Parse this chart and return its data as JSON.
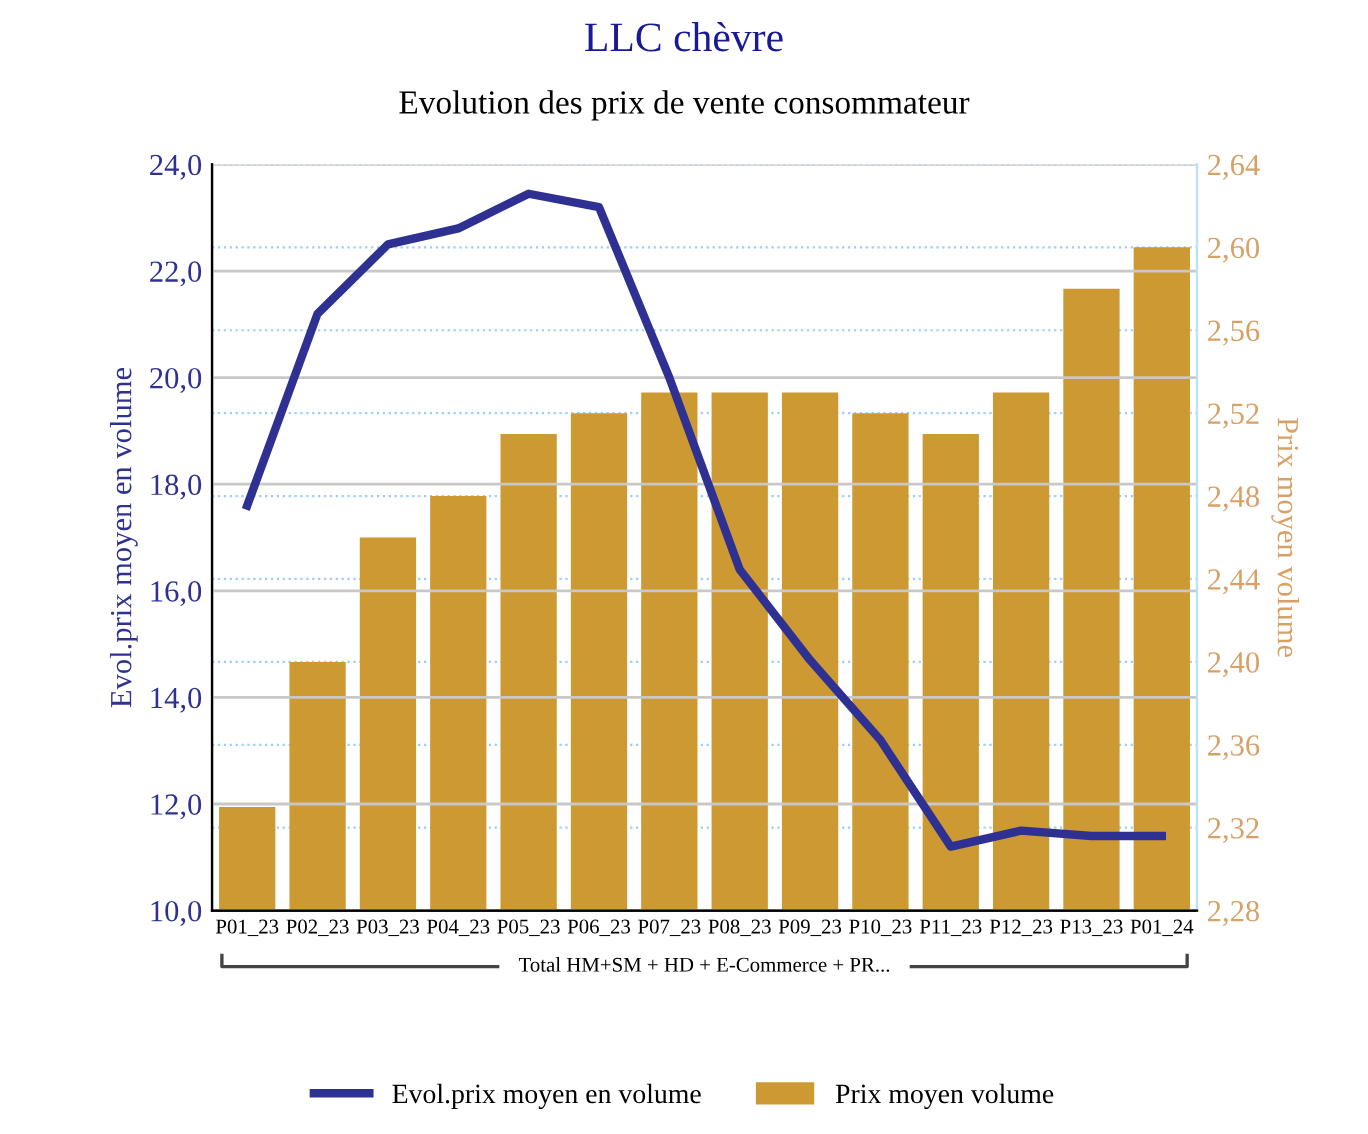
{
  "chart_data": {
    "type": "bar",
    "title": "LLC chèvre",
    "subtitle": "Evolution des prix de vente consommateur",
    "ylabel": "Evol.prix moyen en volume",
    "y2label": "Prix moyen volume",
    "categories": [
      "P01_23",
      "P02_23",
      "P03_23",
      "P04_23",
      "P05_23",
      "P06_23",
      "P07_23",
      "P08_23",
      "P09_23",
      "P10_23",
      "P11_23",
      "P12_23",
      "P13_23",
      "P01_24"
    ],
    "series": [
      {
        "name": "Evol.prix moyen en volume",
        "type": "line",
        "color": "#2e3192",
        "values": [
          17.6,
          21.2,
          22.5,
          22.8,
          23.45,
          23.2,
          20.0,
          16.4,
          14.7,
          13.2,
          11.2,
          11.5,
          11.4,
          11.4
        ]
      },
      {
        "name": "Prix moyen volume",
        "axis": "y2",
        "color": "#cc9933",
        "values": [
          2.33,
          2.4,
          2.46,
          2.48,
          2.51,
          2.52,
          2.53,
          2.53,
          2.53,
          2.52,
          2.51,
          2.53,
          2.58,
          2.6
        ]
      }
    ],
    "ylim": [
      10,
      24
    ],
    "yticks": [
      {
        "value": 10,
        "label": "10,0"
      },
      {
        "value": 12,
        "label": "12,0"
      },
      {
        "value": 14,
        "label": "14,0"
      },
      {
        "value": 16,
        "label": "16,0"
      },
      {
        "value": 18,
        "label": "18,0"
      },
      {
        "value": 20,
        "label": "20,0"
      },
      {
        "value": 22,
        "label": "22,0"
      },
      {
        "value": 24,
        "label": "24,0"
      }
    ],
    "y2lim": [
      2.28,
      2.64
    ],
    "y2ticks": [
      {
        "value": 2.28,
        "label": "2,28"
      },
      {
        "value": 2.32,
        "label": "2,32"
      },
      {
        "value": 2.36,
        "label": "2,36"
      },
      {
        "value": 2.4,
        "label": "2,40"
      },
      {
        "value": 2.44,
        "label": "2,44"
      },
      {
        "value": 2.48,
        "label": "2,48"
      },
      {
        "value": 2.52,
        "label": "2,52"
      },
      {
        "value": 2.56,
        "label": "2,56"
      },
      {
        "value": 2.6,
        "label": "2,60"
      },
      {
        "value": 2.64,
        "label": "2,64"
      }
    ],
    "annotations": [
      "Total HM+SM + HD + E-Commerce + PR..."
    ],
    "grid": true,
    "legend": "bottom",
    "marker": "none",
    "line_style": "solid"
  }
}
